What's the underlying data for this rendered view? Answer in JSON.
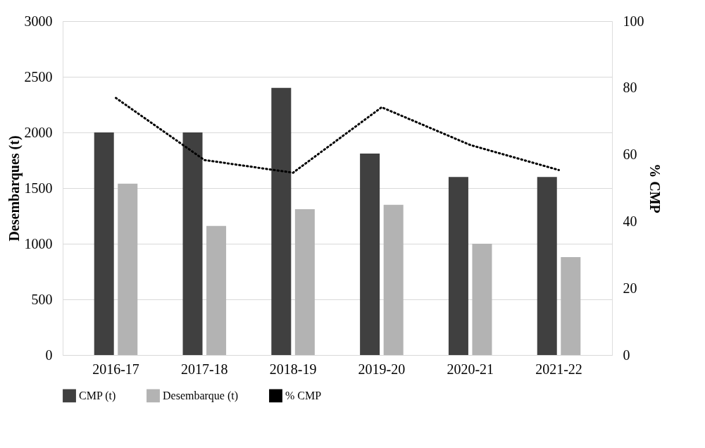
{
  "chart_data": {
    "type": "bar",
    "ylabel": "Desembarques (t)",
    "y2label": "% CMP",
    "categories": [
      "2016-17",
      "2017-18",
      "2018-19",
      "2019-20",
      "2020-21",
      "2021-22"
    ],
    "series": [
      {
        "name": "CMP (t)",
        "color": "#404040",
        "values": [
          2000,
          2000,
          2400,
          1810,
          1600,
          1600
        ]
      },
      {
        "name": "Desembarque (t)",
        "color": "#b3b3b3",
        "values": [
          1540,
          1160,
          1310,
          1350,
          1000,
          880
        ]
      },
      {
        "name": "% CMP",
        "type": "line",
        "axis": "y2",
        "color": "#000000",
        "line_style": "dotted",
        "values": [
          77,
          58.4,
          54.6,
          74.2,
          62.9,
          55.4
        ]
      }
    ],
    "ylim": [
      0,
      3000
    ],
    "yticks": [
      0,
      500,
      1000,
      1500,
      2000,
      2500,
      3000
    ],
    "y2lim": [
      0,
      100
    ],
    "y2ticks": [
      0,
      20,
      40,
      60,
      80,
      100
    ],
    "grid": "y",
    "legend": "bottom"
  }
}
